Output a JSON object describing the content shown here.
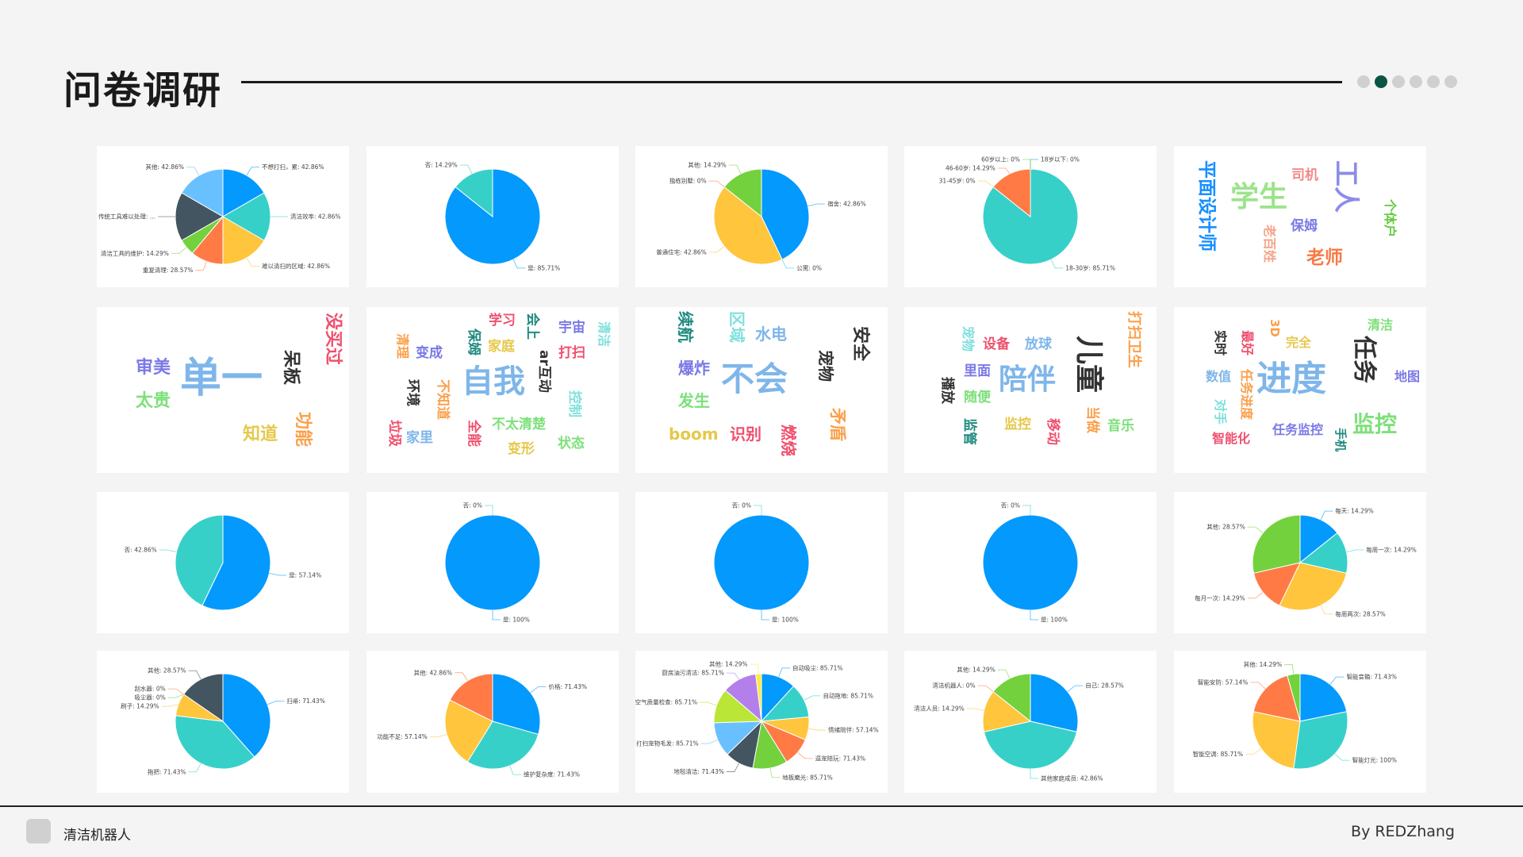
{
  "header": {
    "title": "问卷调研",
    "pagination": {
      "total": 6,
      "active": 2
    }
  },
  "footer": {
    "product": "清洁机器人",
    "author": "By REDZhang"
  },
  "colors": {
    "palette": [
      "#0399fd",
      "#37d0c9",
      "#ffc53d",
      "#ff7a45",
      "#73d13d",
      "#435560",
      "#69c0ff",
      "#bae637",
      "#b37feb",
      "#ffec3d"
    ],
    "active_dot": "#0a5444"
  },
  "cards": [
    {
      "type": "pie",
      "slices": [
        {
          "label": "不想打扫，累",
          "value": 42.86,
          "text": "不想打扫，累: 42.86%"
        },
        {
          "label": "清洁效率",
          "value": 42.86,
          "text": "清洁效率: 42.86%"
        },
        {
          "label": "难以清扫的区域",
          "value": 42.86,
          "text": "难以清扫的区域: 42.86%"
        },
        {
          "label": "重复清理",
          "value": 28.57,
          "text": "重复清理: 28.57%"
        },
        {
          "label": "清洁工具的维护",
          "value": 14.29,
          "text": "清洁工具的维护: 14.29%"
        },
        {
          "label": "传统工具难以处理",
          "value": 42.86,
          "text": "传统工具难以处理: ..."
        },
        {
          "label": "其他",
          "value": 42.86,
          "text": "其他: 42.86%"
        }
      ]
    },
    {
      "type": "pie",
      "slices": [
        {
          "label": "是",
          "value": 85.71,
          "text": "是: 85.71%"
        },
        {
          "label": "否",
          "value": 14.29,
          "text": "否: 14.29%"
        }
      ]
    },
    {
      "type": "pie",
      "slices": [
        {
          "label": "宿舍",
          "value": 42.86,
          "text": "宿舍: 42.86%"
        },
        {
          "label": "公寓",
          "value": 0,
          "text": "公寓: 0%"
        },
        {
          "label": "普通住宅",
          "value": 42.86,
          "text": "普通住宅: 42.86%"
        },
        {
          "label": "独栋别墅",
          "value": 0,
          "text": "独栋别墅: 0%"
        },
        {
          "label": "其他",
          "value": 14.29,
          "text": "其他: 14.29%"
        }
      ]
    },
    {
      "type": "pie",
      "slices": [
        {
          "label": "18岁以下",
          "value": 0,
          "text": "18岁以下: 0%"
        },
        {
          "label": "18-30岁",
          "value": 85.71,
          "text": "18-30岁: 85.71%"
        },
        {
          "label": "31-45岁",
          "value": 0,
          "text": "31-45岁: 0%"
        },
        {
          "label": "46-60岁",
          "value": 14.29,
          "text": "46-60岁: 14.29%"
        },
        {
          "label": "60岁以上",
          "value": 0,
          "text": "60岁以上: 0%"
        }
      ]
    },
    {
      "type": "wordcloud",
      "words": [
        "平面设计师",
        "学生",
        "司机",
        "工人",
        "个体户",
        "保姆",
        "老百姓",
        "老师"
      ]
    },
    {
      "type": "wordcloud",
      "words": [
        "没买过",
        "审美",
        "单一",
        "呆板",
        "太贵",
        "知道",
        "功能"
      ]
    },
    {
      "type": "wordcloud",
      "words": [
        "学习",
        "会上",
        "宇宙",
        "清洁",
        "清理",
        "变成",
        "保姆",
        "家庭",
        "ar互动",
        "打扫",
        "自我",
        "环境",
        "不知道",
        "控制",
        "垃圾",
        "家里",
        "全能",
        "不太清楚",
        "变形",
        "状态"
      ]
    },
    {
      "type": "wordcloud",
      "words": [
        "续航",
        "区域",
        "水电",
        "安全",
        "爆炸",
        "不会",
        "宠物",
        "发生",
        "矛盾",
        "boom",
        "识别",
        "燃烧"
      ]
    },
    {
      "type": "wordcloud",
      "words": [
        "打扫卫生",
        "宠物",
        "设备",
        "放球",
        "儿童",
        "里面",
        "陪伴",
        "播放",
        "随便",
        "当做",
        "音乐",
        "监管",
        "监控",
        "移动"
      ]
    },
    {
      "type": "wordcloud",
      "words": [
        "3D",
        "清洁",
        "实时",
        "最好",
        "完全",
        "任务",
        "数值",
        "进度",
        "地图",
        "任务进度",
        "对手",
        "监控",
        "任务监控",
        "手机",
        "智能化"
      ]
    },
    {
      "type": "pie",
      "slices": [
        {
          "label": "是",
          "value": 57.14,
          "text": "是: 57.14%"
        },
        {
          "label": "否",
          "value": 42.86,
          "text": "否: 42.86%"
        }
      ]
    },
    {
      "type": "pie",
      "slices": [
        {
          "label": "是",
          "value": 100,
          "text": "是: 100%"
        },
        {
          "label": "否",
          "value": 0,
          "text": "否: 0%"
        }
      ]
    },
    {
      "type": "pie",
      "slices": [
        {
          "label": "是",
          "value": 100,
          "text": "是: 100%"
        },
        {
          "label": "否",
          "value": 0,
          "text": "否: 0%"
        }
      ]
    },
    {
      "type": "pie",
      "slices": [
        {
          "label": "是",
          "value": 100,
          "text": "是: 100%"
        },
        {
          "label": "否",
          "value": 0,
          "text": "否: 0%"
        }
      ]
    },
    {
      "type": "pie",
      "slices": [
        {
          "label": "每天",
          "value": 14.29,
          "text": "每天: 14.29%"
        },
        {
          "label": "每周一次",
          "value": 14.29,
          "text": "每周一次: 14.29%"
        },
        {
          "label": "每周两次",
          "value": 28.57,
          "text": "每周两次: 28.57%"
        },
        {
          "label": "每月一次",
          "value": 14.29,
          "text": "每月一次: 14.29%"
        },
        {
          "label": "其他",
          "value": 28.57,
          "text": "其他: 28.57%"
        }
      ]
    },
    {
      "type": "pie",
      "slices": [
        {
          "label": "扫帚",
          "value": 71.43,
          "text": "扫帚: 71.43%"
        },
        {
          "label": "拖把",
          "value": 71.43,
          "text": "拖把: 71.43%"
        },
        {
          "label": "刷子",
          "value": 14.29,
          "text": "刷子: 14.29%"
        },
        {
          "label": "刮水器",
          "value": 0,
          "text": "刮水器: 0%"
        },
        {
          "label": "吸尘器",
          "value": 0,
          "text": "吸尘器: 0%"
        },
        {
          "label": "其他",
          "value": 28.57,
          "text": "其他: 28.57%",
          "color_index": 5
        }
      ]
    },
    {
      "type": "pie",
      "slices": [
        {
          "label": "价格",
          "value": 71.43,
          "text": "价格: 71.43%"
        },
        {
          "label": "维护复杂度",
          "value": 71.43,
          "text": "维护复杂度: 71.43%"
        },
        {
          "label": "功能不足",
          "value": 57.14,
          "text": "功能不足: 57.14%"
        },
        {
          "label": "其他",
          "value": 42.86,
          "text": "其他: 42.86%"
        }
      ]
    },
    {
      "type": "pie",
      "slices": [
        {
          "label": "自动吸尘",
          "value": 85.71,
          "text": "自动吸尘: 85.71%"
        },
        {
          "label": "自动拖地",
          "value": 85.71,
          "text": "自动拖地: 85.71%"
        },
        {
          "label": "情绪陪伴",
          "value": 57.14,
          "text": "情绪陪伴: 57.14%"
        },
        {
          "label": "逗宠陪玩",
          "value": 71.43,
          "text": "逗宠陪玩: 71.43%"
        },
        {
          "label": "地板磨光",
          "value": 85.71,
          "text": "地板磨光: 85.71%"
        },
        {
          "label": "地毯清洁",
          "value": 71.43,
          "text": "地毯清洁: 71.43%"
        },
        {
          "label": "打扫宠物毛发",
          "value": 85.71,
          "text": "打扫宠物毛发: 85.71%"
        },
        {
          "label": "空气质量检查",
          "value": 85.71,
          "text": "空气质量检查: 85.71%"
        },
        {
          "label": "厨房油污清洁",
          "value": 85.71,
          "text": "厨房油污清洁: 85.71%"
        },
        {
          "label": "其他",
          "value": 14.29,
          "text": "其他: 14.29%"
        }
      ]
    },
    {
      "type": "pie",
      "slices": [
        {
          "label": "自己",
          "value": 28.57,
          "text": "自己: 28.57%"
        },
        {
          "label": "其他家庭成员",
          "value": 42.86,
          "text": "其他家庭成员: 42.86%"
        },
        {
          "label": "清洁人员",
          "value": 14.29,
          "text": "清洁人员: 14.29%"
        },
        {
          "label": "清洁机器人",
          "value": 0,
          "text": "清洁机器人: 0%"
        },
        {
          "label": "其他",
          "value": 14.29,
          "text": "其他: 14.29%"
        }
      ]
    },
    {
      "type": "pie",
      "slices": [
        {
          "label": "智能音箱",
          "value": 71.43,
          "text": "智能音箱: 71.43%"
        },
        {
          "label": "智能灯光",
          "value": 100,
          "text": "智能灯光: 100%"
        },
        {
          "label": "智能空调",
          "value": 85.71,
          "text": "智能空调: 85.71%"
        },
        {
          "label": "智能安防",
          "value": 57.14,
          "text": "智能安防: 57.14%"
        },
        {
          "label": "其他",
          "value": 14.29,
          "text": "其他: 14.29%"
        }
      ]
    }
  ]
}
